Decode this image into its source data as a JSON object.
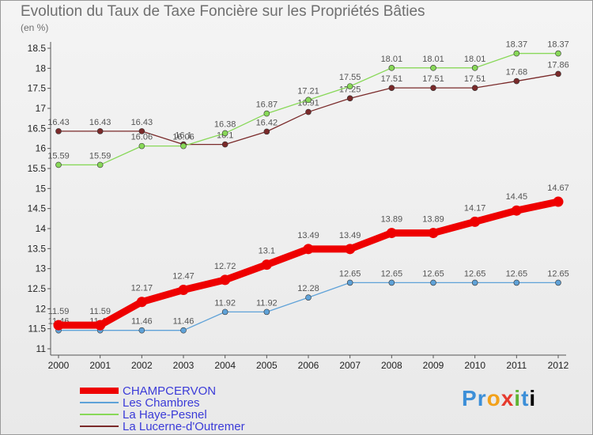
{
  "header": {
    "title": "Evolution du Taux de Taxe Foncière sur les Propriétés Bâties",
    "subtitle": "(en %)"
  },
  "logo": {
    "chars": [
      "P",
      "r",
      "o",
      "x",
      "i",
      "t",
      "i"
    ]
  },
  "chart_data": {
    "type": "line",
    "x": [
      "2000",
      "2001",
      "2002",
      "2003",
      "2004",
      "2005",
      "2006",
      "2007",
      "2008",
      "2009",
      "2010",
      "2011",
      "2012"
    ],
    "ylim": [
      11,
      18.5
    ],
    "yticks": [
      "11",
      "11.5",
      "12",
      "12.5",
      "13",
      "13.5",
      "14",
      "14.5",
      "15",
      "15.5",
      "16",
      "16.5",
      "17",
      "17.5",
      "18",
      "18.5"
    ],
    "grid": false,
    "legend_position": "bottom-left",
    "series": [
      {
        "name": "CHAMPCERVON",
        "color": "#ee0000",
        "values": [
          11.59,
          11.59,
          12.17,
          12.47,
          12.72,
          13.1,
          13.49,
          13.49,
          13.89,
          13.89,
          14.17,
          14.45,
          14.67
        ],
        "labels": [
          "11.59",
          "11.59",
          "12.17",
          "12.47",
          "12.72",
          "13.1",
          "13.49",
          "13.49",
          "13.89",
          "13.89",
          "14.17",
          "14.45",
          "14.67"
        ]
      },
      {
        "name": "Les Chambres",
        "color": "#5fa2d8",
        "values": [
          11.46,
          11.46,
          11.46,
          11.46,
          11.92,
          11.92,
          12.28,
          12.65,
          12.65,
          12.65,
          12.65,
          12.65,
          12.65
        ],
        "labels": [
          "11.46",
          "11.46",
          "11.46",
          "11.46",
          "11.92",
          "11.92",
          "12.28",
          "12.65",
          "12.65",
          "12.65",
          "12.65",
          "12.65",
          "12.65"
        ]
      },
      {
        "name": "La Haye-Pesnel",
        "color": "#88d858",
        "values": [
          15.59,
          15.59,
          16.06,
          16.06,
          16.38,
          16.87,
          17.21,
          17.55,
          18.01,
          18.01,
          18.01,
          18.37,
          18.37
        ],
        "labels": [
          "15.59",
          "15.59",
          "16.06",
          "16.06",
          "16.38",
          "16.87",
          "17.21",
          "17.55",
          "18.01",
          "18.01",
          "18.01",
          "18.37",
          "18.37"
        ]
      },
      {
        "name": "La Lucerne-d'Outremer",
        "color": "#7a2a2a",
        "values": [
          16.43,
          16.43,
          16.43,
          16.1,
          16.1,
          16.42,
          16.91,
          17.25,
          17.51,
          17.51,
          17.51,
          17.68,
          17.86
        ],
        "labels": [
          "16.43",
          "16.43",
          "16.43",
          "16.1",
          "16.1",
          "16.42",
          "16.91",
          "17.25",
          "17.51",
          "17.51",
          "17.51",
          "17.68",
          "17.86"
        ]
      }
    ]
  }
}
